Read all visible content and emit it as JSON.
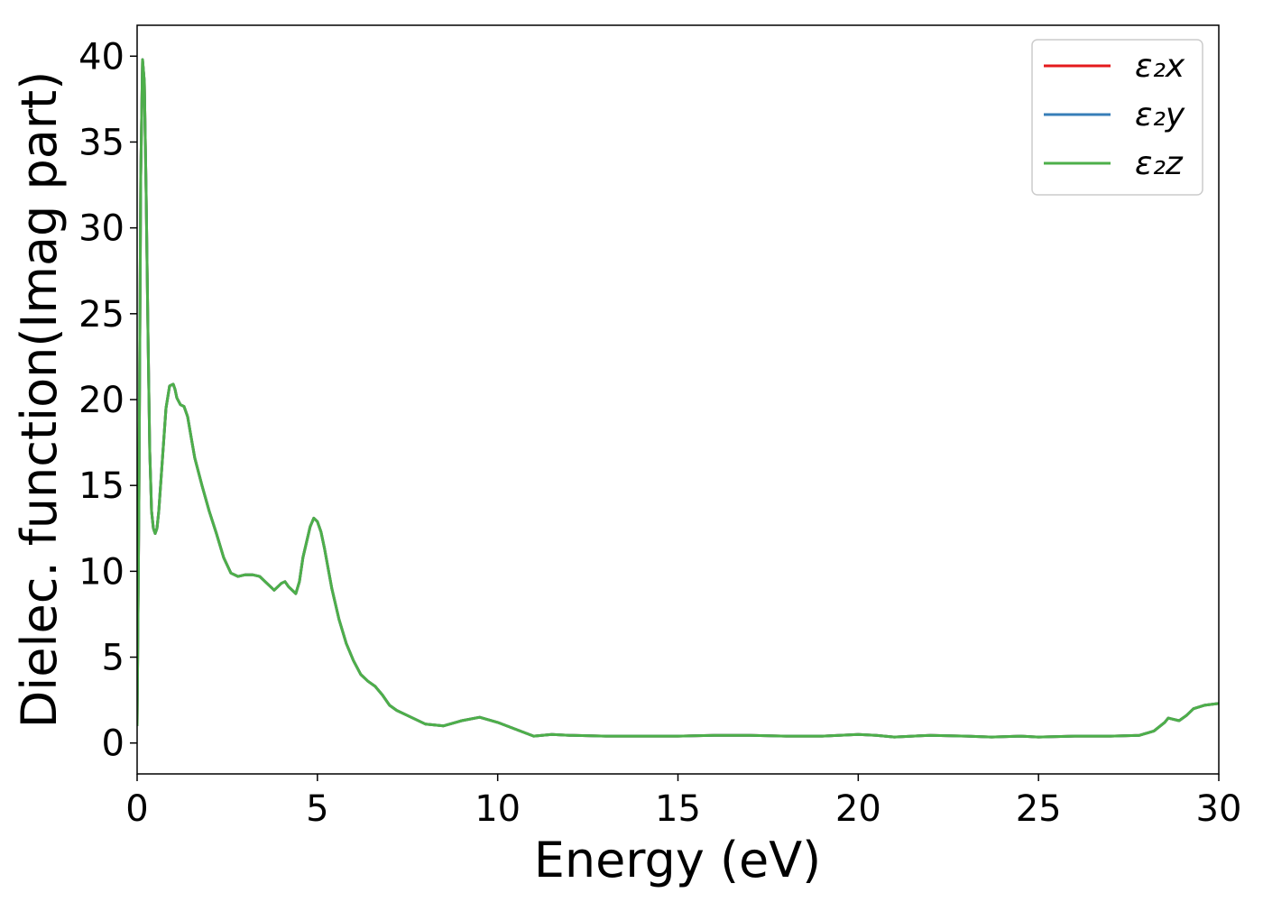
{
  "chart_data": {
    "type": "line",
    "title": "",
    "xlabel": "Energy (eV)",
    "ylabel": "Dielec. function(Imag part)",
    "xlim": [
      0,
      30
    ],
    "ylim": [
      -1.8,
      41.8
    ],
    "xticks": [
      0,
      5,
      10,
      15,
      20,
      25,
      30
    ],
    "yticks": [
      0,
      5,
      10,
      15,
      20,
      25,
      30,
      35,
      40
    ],
    "grid": false,
    "legend_position": "top-right",
    "x": [
      0,
      0.05,
      0.1,
      0.15,
      0.2,
      0.25,
      0.3,
      0.35,
      0.4,
      0.45,
      0.5,
      0.55,
      0.6,
      0.7,
      0.8,
      0.9,
      1.0,
      1.05,
      1.1,
      1.2,
      1.3,
      1.4,
      1.5,
      1.6,
      1.8,
      2.0,
      2.2,
      2.4,
      2.6,
      2.8,
      3.0,
      3.2,
      3.4,
      3.6,
      3.8,
      4.0,
      4.1,
      4.2,
      4.4,
      4.5,
      4.6,
      4.8,
      4.9,
      5.0,
      5.1,
      5.2,
      5.4,
      5.6,
      5.8,
      6.0,
      6.2,
      6.4,
      6.6,
      6.8,
      7.0,
      7.2,
      7.5,
      8.0,
      8.5,
      9.0,
      9.5,
      10.0,
      10.5,
      11.0,
      11.5,
      12.0,
      13.0,
      14.0,
      15.0,
      16.0,
      17.0,
      18.0,
      19.0,
      20.0,
      20.5,
      21.0,
      22.0,
      23.0,
      23.7,
      24.5,
      25.0,
      26.0,
      27.0,
      27.8,
      28.2,
      28.5,
      28.6,
      28.7,
      28.9,
      29.1,
      29.3,
      29.6,
      30.0
    ],
    "series": [
      {
        "name": "ε₂x",
        "color": "#e41a1c",
        "y": [
          1.0,
          14.0,
          33.0,
          39.8,
          38.5,
          32.0,
          24.0,
          17.0,
          13.5,
          12.5,
          12.2,
          12.5,
          13.5,
          16.5,
          19.5,
          20.8,
          20.9,
          20.6,
          20.1,
          19.7,
          19.6,
          19.0,
          17.8,
          16.6,
          15.0,
          13.5,
          12.2,
          10.8,
          9.9,
          9.7,
          9.8,
          9.8,
          9.7,
          9.3,
          8.9,
          9.3,
          9.4,
          9.1,
          8.7,
          9.4,
          10.8,
          12.6,
          13.1,
          12.9,
          12.3,
          11.3,
          9.0,
          7.2,
          5.8,
          4.8,
          4.0,
          3.6,
          3.3,
          2.8,
          2.2,
          1.9,
          1.6,
          1.1,
          1.0,
          1.3,
          1.5,
          1.2,
          0.8,
          0.4,
          0.5,
          0.45,
          0.4,
          0.4,
          0.4,
          0.45,
          0.45,
          0.4,
          0.4,
          0.5,
          0.45,
          0.35,
          0.45,
          0.4,
          0.35,
          0.4,
          0.35,
          0.4,
          0.4,
          0.45,
          0.7,
          1.2,
          1.45,
          1.4,
          1.3,
          1.6,
          2.0,
          2.2,
          2.3
        ]
      },
      {
        "name": "ε₂y",
        "color": "#377eb8",
        "y": [
          1.0,
          14.0,
          33.0,
          39.8,
          38.5,
          32.0,
          24.0,
          17.0,
          13.5,
          12.5,
          12.2,
          12.5,
          13.5,
          16.5,
          19.5,
          20.8,
          20.9,
          20.6,
          20.1,
          19.7,
          19.6,
          19.0,
          17.8,
          16.6,
          15.0,
          13.5,
          12.2,
          10.8,
          9.9,
          9.7,
          9.8,
          9.8,
          9.7,
          9.3,
          8.9,
          9.3,
          9.4,
          9.1,
          8.7,
          9.4,
          10.8,
          12.6,
          13.1,
          12.9,
          12.3,
          11.3,
          9.0,
          7.2,
          5.8,
          4.8,
          4.0,
          3.6,
          3.3,
          2.8,
          2.2,
          1.9,
          1.6,
          1.1,
          1.0,
          1.3,
          1.5,
          1.2,
          0.8,
          0.4,
          0.5,
          0.45,
          0.4,
          0.4,
          0.4,
          0.45,
          0.45,
          0.4,
          0.4,
          0.5,
          0.45,
          0.35,
          0.45,
          0.4,
          0.35,
          0.4,
          0.35,
          0.4,
          0.4,
          0.45,
          0.7,
          1.2,
          1.45,
          1.4,
          1.3,
          1.6,
          2.0,
          2.2,
          2.3
        ]
      },
      {
        "name": "ε₂z",
        "color": "#4daf4a",
        "y": [
          1.0,
          14.0,
          33.0,
          39.8,
          38.5,
          32.0,
          24.0,
          17.0,
          13.5,
          12.5,
          12.2,
          12.5,
          13.5,
          16.5,
          19.5,
          20.8,
          20.9,
          20.6,
          20.1,
          19.7,
          19.6,
          19.0,
          17.8,
          16.6,
          15.0,
          13.5,
          12.2,
          10.8,
          9.9,
          9.7,
          9.8,
          9.8,
          9.7,
          9.3,
          8.9,
          9.3,
          9.4,
          9.1,
          8.7,
          9.4,
          10.8,
          12.6,
          13.1,
          12.9,
          12.3,
          11.3,
          9.0,
          7.2,
          5.8,
          4.8,
          4.0,
          3.6,
          3.3,
          2.8,
          2.2,
          1.9,
          1.6,
          1.1,
          1.0,
          1.3,
          1.5,
          1.2,
          0.8,
          0.4,
          0.5,
          0.45,
          0.4,
          0.4,
          0.4,
          0.45,
          0.45,
          0.4,
          0.4,
          0.5,
          0.45,
          0.35,
          0.45,
          0.4,
          0.35,
          0.4,
          0.35,
          0.4,
          0.4,
          0.45,
          0.7,
          1.2,
          1.45,
          1.4,
          1.3,
          1.6,
          2.0,
          2.2,
          2.3
        ]
      }
    ]
  }
}
